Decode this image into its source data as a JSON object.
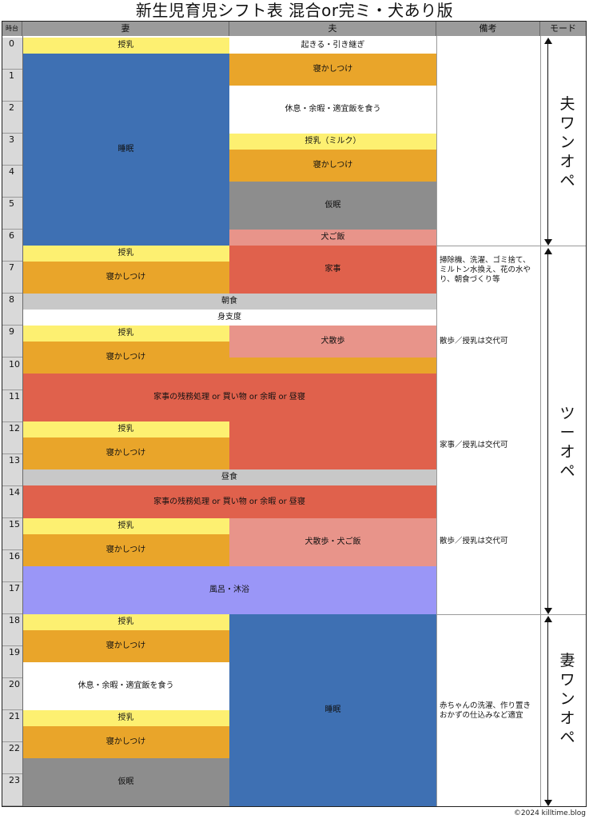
{
  "title": "新生児育児シフト表 混合or完ミ・犬あり版",
  "headers": {
    "time": "時台",
    "wife": "妻",
    "husband": "夫",
    "notes": "備考",
    "mode": "モード"
  },
  "hours": [
    "0",
    "1",
    "2",
    "3",
    "4",
    "5",
    "6",
    "7",
    "8",
    "9",
    "10",
    "11",
    "12",
    "13",
    "14",
    "15",
    "16",
    "17",
    "18",
    "19",
    "20",
    "21",
    "22",
    "23"
  ],
  "blocks": {
    "w_feed_0": "授乳",
    "w_sleep_0": "睡眠",
    "h_wake_0": "起きる・引き継ぎ",
    "h_soothe_1": "寝かしつけ",
    "h_rest_2": "休息・余暇・適宜飯を食う",
    "h_feed_3": "授乳（ミルク）",
    "h_soothe_3": "寝かしつけ",
    "h_nap_4": "仮眠",
    "h_dogfood_6": "犬ご飯",
    "w_feed_6": "授乳",
    "w_soothe_7": "寝かしつけ",
    "h_chores_6": "家事",
    "breakfast_8": "朝食",
    "getready_8": "身支度",
    "w_feed_9": "授乳",
    "w_soothe_9": "寝かしつけ",
    "h_walk_9": "犬散歩",
    "chores_10": "家事の残務処理 or 買い物 or 余暇 or 昼寝",
    "w_feed_12": "授乳",
    "w_soothe_12": "寝かしつけ",
    "lunch_13": "昼食",
    "chores_14": "家事の残務処理 or 買い物 or 余暇 or 昼寝",
    "w_feed_15": "授乳",
    "w_soothe_15": "寝かしつけ",
    "h_walk_15": "犬散歩・犬ご飯",
    "bath_16": "風呂・沐浴",
    "w_feed_18": "授乳",
    "w_soothe_18": "寝かしつけ",
    "w_rest_19": "休息・余暇・適宜飯を食う",
    "w_feed_21": "授乳",
    "w_soothe_21": "寝かしつけ",
    "w_nap_22": "仮眠",
    "h_sleep_18": "睡眠"
  },
  "notes": {
    "n_6": "掃除機、洗濯、ゴミ捨て、ミルトン水換え、花の水やり、朝食づくり等",
    "n_9": "散歩／授乳は交代可",
    "n_12": "家事／授乳は交代可",
    "n_15": "散歩／授乳は交代可",
    "n_21": "赤ちゃんの洗濯、作り置きおかずの仕込みなど適宜"
  },
  "modes": {
    "m1": "夫ワンオペ",
    "m2": "ツーオペ",
    "m3": "妻ワンオペ"
  },
  "footer": "©2024 killtime.blog",
  "colors": {
    "feed": "#fdf071",
    "soothe": "#e9a52a",
    "sleep": "#3e70b3",
    "rest": "#ffffff",
    "nap": "#8d8d8d",
    "dog": "#e8948a",
    "chores": "#e0614c",
    "meal": "#c8c8c8",
    "bath": "#9a96f7",
    "header": "#9b9b9b"
  }
}
